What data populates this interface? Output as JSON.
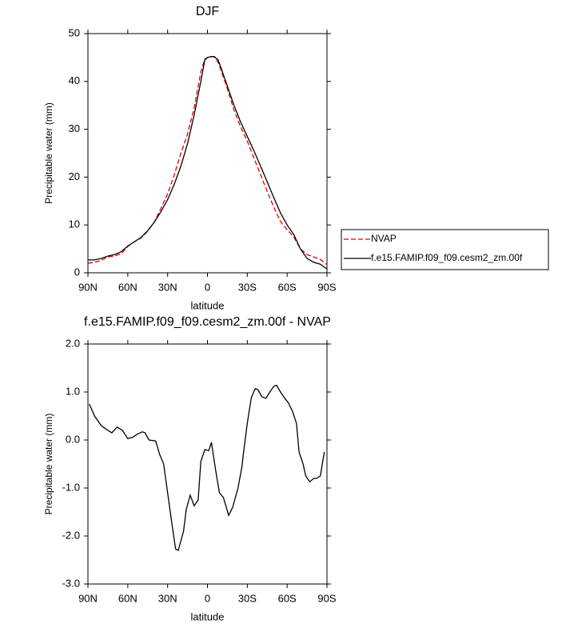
{
  "chart_data": [
    {
      "type": "line",
      "title": "DJF",
      "xlabel": "latitude",
      "ylabel": "Precipitable water (mm)",
      "x": [
        90,
        85,
        80,
        75,
        70,
        65,
        60,
        55,
        50,
        45,
        40,
        35,
        30,
        25,
        20,
        15,
        10,
        5,
        2,
        0,
        -3,
        -5,
        -8,
        -10,
        -15,
        -20,
        -25,
        -30,
        -35,
        -40,
        -45,
        -50,
        -55,
        -60,
        -65,
        -70,
        -75,
        -80,
        -85,
        -90
      ],
      "series": [
        {
          "name": "NVAP",
          "color": "#e00000",
          "style": "dashed",
          "values": [
            2.0,
            2.2,
            2.6,
            3.3,
            3.5,
            4.0,
            5.5,
            6.5,
            7.3,
            8.7,
            10.6,
            13.5,
            16.5,
            20.5,
            25,
            29,
            34.5,
            42,
            44.7,
            45,
            45.2,
            45.2,
            44,
            42.5,
            38.5,
            34,
            30.5,
            27.5,
            24,
            20.5,
            17,
            13.7,
            10.7,
            9,
            7.5,
            5,
            3.8,
            3.3,
            2.8,
            1.7
          ]
        },
        {
          "name": "f.e15.FAMIP.f09_f09.cesm2_zm.00f",
          "color": "#000000",
          "style": "solid",
          "values": [
            2.7,
            2.7,
            3.0,
            3.5,
            3.8,
            4.4,
            5.6,
            6.5,
            7.4,
            8.8,
            10.6,
            12.8,
            15.3,
            18.5,
            22.3,
            27,
            33,
            40,
            44.5,
            45,
            45.2,
            45.2,
            44.5,
            43,
            39,
            35,
            31.5,
            28.5,
            25.5,
            22.3,
            19,
            15.7,
            12.5,
            10,
            8,
            5,
            3,
            2.2,
            1.8,
            0.8
          ]
        }
      ],
      "xlim": [
        90,
        -90
      ],
      "xticks": [
        {
          "value": 90,
          "label": "90N"
        },
        {
          "value": 60,
          "label": "60N"
        },
        {
          "value": 30,
          "label": "30N"
        },
        0,
        {
          "value": -30,
          "label": "30S"
        },
        {
          "value": -60,
          "label": "60S"
        },
        {
          "value": -90,
          "label": "90S"
        }
      ],
      "ylim": [
        0,
        50
      ],
      "yticks": [
        0,
        10,
        20,
        30,
        40,
        50
      ],
      "legend": "outside-right"
    },
    {
      "type": "line",
      "title": "f.e15.FAMIP.f09_f09.cesm2_zm.00f - NVAP",
      "xlabel": "latitude",
      "ylabel": "Precipitable water (mm)",
      "x": [
        89,
        85,
        80,
        76,
        72,
        68,
        64,
        60,
        56,
        53,
        49,
        47,
        44,
        39,
        36,
        33,
        30,
        27,
        24,
        22,
        18,
        16,
        13,
        10,
        7,
        5,
        2,
        -1,
        -3,
        -6,
        -9,
        -12,
        -16,
        -19,
        -23,
        -26,
        -27,
        -30,
        -33,
        -36,
        -38,
        -41,
        -44,
        -47,
        -50,
        -52,
        -55,
        -58,
        -61,
        -64,
        -67,
        -69,
        -72,
        -74,
        -77,
        -80,
        -82,
        -85,
        -88
      ],
      "values": [
        0.75,
        0.5,
        0.3,
        0.22,
        0.15,
        0.27,
        0.2,
        0.03,
        0.06,
        0.12,
        0.17,
        0.15,
        0.0,
        -0.02,
        -0.3,
        -0.5,
        -1.1,
        -1.7,
        -2.27,
        -2.3,
        -1.9,
        -1.45,
        -1.15,
        -1.37,
        -1.25,
        -0.45,
        -0.2,
        -0.22,
        -0.05,
        -0.6,
        -1.1,
        -1.2,
        -1.57,
        -1.4,
        -1.0,
        -0.55,
        -0.3,
        0.35,
        0.88,
        1.07,
        1.05,
        0.9,
        0.87,
        1.0,
        1.12,
        1.14,
        1.0,
        0.88,
        0.77,
        0.6,
        0.35,
        -0.25,
        -0.5,
        -0.75,
        -0.87,
        -0.8,
        -0.8,
        -0.75,
        -0.25
      ],
      "color": "#000000",
      "xlim": [
        90,
        -90
      ],
      "xticks": [
        {
          "value": 90,
          "label": "90N"
        },
        {
          "value": 60,
          "label": "60N"
        },
        {
          "value": 30,
          "label": "30N"
        },
        0,
        {
          "value": -30,
          "label": "30S"
        },
        {
          "value": -60,
          "label": "60S"
        },
        {
          "value": -90,
          "label": "90S"
        }
      ],
      "ylim": [
        -3,
        2
      ],
      "yticks": [
        {
          "value": -3,
          "label": "-3.0"
        },
        {
          "value": -2,
          "label": "-2.0"
        },
        {
          "value": -1,
          "label": "-1.0"
        },
        {
          "value": 0,
          "label": "0.0"
        },
        {
          "value": 1,
          "label": "1.0"
        },
        {
          "value": 2,
          "label": "2.0"
        }
      ]
    }
  ]
}
